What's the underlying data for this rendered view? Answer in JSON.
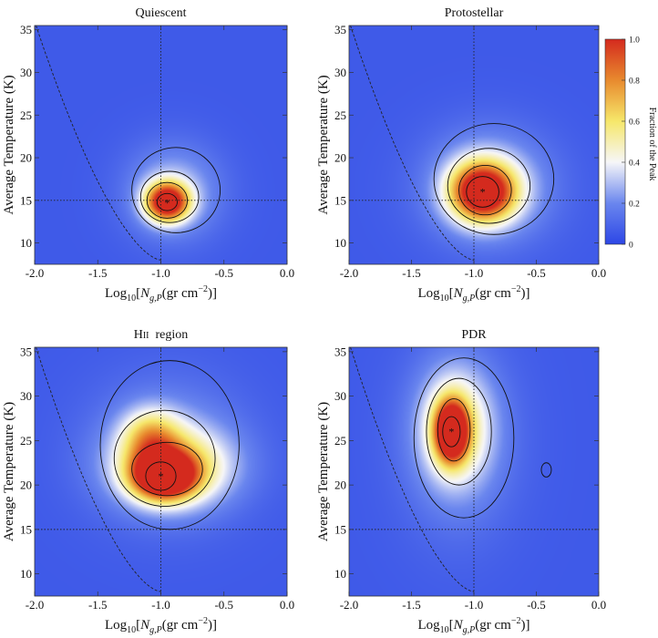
{
  "chart_data": [
    {
      "type": "heatmap",
      "title": "Quiescent",
      "xlabel_base": "Log",
      "xlabel_sub": "10",
      "xlabel_bracket_open": "[",
      "xlabel_N": "N",
      "xlabel_N_sub": "g,P",
      "xlabel_unit": "(gr cm",
      "xlabel_exp": "−2",
      "xlabel_close": ")]",
      "ylabel": "Average Temperature (K)",
      "xlim": [
        -2.0,
        0.0
      ],
      "ylim": [
        7.5,
        35.5
      ],
      "xticks": [
        "-2.0",
        "-1.5",
        "-1.0",
        "-0.5",
        "0.0"
      ],
      "xtick_values": [
        -2.0,
        -1.5,
        -1.0,
        -0.5,
        0.0
      ],
      "yticks": [
        "10",
        "15",
        "20",
        "25",
        "30",
        "35"
      ],
      "ytick_values": [
        10,
        15,
        20,
        25,
        30,
        35
      ],
      "ref_x": -1.0,
      "ref_y": 15,
      "peak": {
        "x": -0.95,
        "y": 14.7
      },
      "blobs": [
        {
          "x": -0.95,
          "y": 14.8,
          "sx": 0.12,
          "sy": 1.6,
          "w": 1.0
        },
        {
          "x": -0.9,
          "y": 16.0,
          "sx": 0.26,
          "sy": 3.8,
          "w": 0.25
        }
      ],
      "contours": [
        {
          "x": -0.95,
          "y": 14.8,
          "rx": 0.08,
          "ry": 1.0
        },
        {
          "x": -0.95,
          "y": 15.0,
          "rx": 0.16,
          "ry": 2.1
        },
        {
          "x": -0.93,
          "y": 15.4,
          "rx": 0.23,
          "ry": 3.0
        },
        {
          "x": -0.88,
          "y": 16.2,
          "rx": 0.35,
          "ry": 5.0
        }
      ]
    },
    {
      "type": "heatmap",
      "title": "Protostellar",
      "xlabel_base": "Log",
      "xlabel_sub": "10",
      "xlabel_bracket_open": "[",
      "xlabel_N": "N",
      "xlabel_N_sub": "g,P",
      "xlabel_unit": "(gr cm",
      "xlabel_exp": "−2",
      "xlabel_close": ")]",
      "ylabel": "Average Temperature (K)",
      "xlim": [
        -2.0,
        0.0
      ],
      "ylim": [
        7.5,
        35.5
      ],
      "xticks": [
        "-2.0",
        "-1.5",
        "-1.0",
        "-0.5",
        "0.0"
      ],
      "xtick_values": [
        -2.0,
        -1.5,
        -1.0,
        -0.5,
        0.0
      ],
      "yticks": [
        "10",
        "15",
        "20",
        "25",
        "30",
        "35"
      ],
      "ytick_values": [
        10,
        15,
        20,
        25,
        30,
        35
      ],
      "ref_x": -1.0,
      "ref_y": 15,
      "peak": {
        "x": -0.93,
        "y": 16.0
      },
      "blobs": [
        {
          "x": -0.93,
          "y": 16.0,
          "sx": 0.18,
          "sy": 2.4,
          "w": 1.0
        },
        {
          "x": -0.88,
          "y": 16.6,
          "sx": 0.34,
          "sy": 4.4,
          "w": 0.3
        }
      ],
      "contours": [
        {
          "x": -0.93,
          "y": 16.0,
          "rx": 0.13,
          "ry": 1.8
        },
        {
          "x": -0.91,
          "y": 16.2,
          "rx": 0.21,
          "ry": 2.9
        },
        {
          "x": -0.88,
          "y": 16.7,
          "rx": 0.33,
          "ry": 4.4
        },
        {
          "x": -0.84,
          "y": 17.5,
          "rx": 0.48,
          "ry": 6.5
        }
      ]
    },
    {
      "type": "heatmap",
      "title": "HII region",
      "title_main": "H",
      "title_roman": "II",
      "title_rest": "region",
      "xlabel_base": "Log",
      "xlabel_sub": "10",
      "xlabel_bracket_open": "[",
      "xlabel_N": "N",
      "xlabel_N_sub": "g,P",
      "xlabel_unit": "(gr cm",
      "xlabel_exp": "−2",
      "xlabel_close": ")]",
      "ylabel": "Average Temperature (K)",
      "xlim": [
        -2.0,
        0.0
      ],
      "ylim": [
        7.5,
        35.5
      ],
      "xticks": [
        "-2.0",
        "-1.5",
        "-1.0",
        "-0.5",
        "0.0"
      ],
      "xtick_values": [
        -2.0,
        -1.5,
        -1.0,
        -0.5,
        0.0
      ],
      "yticks": [
        "10",
        "15",
        "20",
        "25",
        "30",
        "35"
      ],
      "ytick_values": [
        10,
        15,
        20,
        25,
        30,
        35
      ],
      "ref_x": -1.0,
      "ref_y": 15,
      "peak": {
        "x": -1.0,
        "y": 21.0
      },
      "blobs": [
        {
          "x": -0.98,
          "y": 21.0,
          "sx": 0.17,
          "sy": 1.8,
          "w": 1.0
        },
        {
          "x": -0.9,
          "y": 22.0,
          "sx": 0.32,
          "sy": 3.0,
          "w": 0.5
        },
        {
          "x": -1.08,
          "y": 25.5,
          "sx": 0.16,
          "sy": 2.2,
          "w": 0.4
        },
        {
          "x": -0.95,
          "y": 24.0,
          "sx": 0.42,
          "sy": 5.5,
          "w": 0.18
        }
      ],
      "contours": [
        {
          "x": -1.0,
          "y": 21.0,
          "rx": 0.12,
          "ry": 1.6
        },
        {
          "x": -0.95,
          "y": 21.8,
          "rx": 0.28,
          "ry": 3.0
        },
        {
          "x": -0.97,
          "y": 23.0,
          "rx": 0.4,
          "ry": 5.4
        },
        {
          "x": -0.93,
          "y": 24.5,
          "rx": 0.55,
          "ry": 9.5
        }
      ]
    },
    {
      "type": "heatmap",
      "title": "PDR",
      "xlabel_base": "Log",
      "xlabel_sub": "10",
      "xlabel_bracket_open": "[",
      "xlabel_N": "N",
      "xlabel_N_sub": "g,P",
      "xlabel_unit": "(gr cm",
      "xlabel_exp": "−2",
      "xlabel_close": ")]",
      "ylabel": "Average Temperature (K)",
      "xlim": [
        -2.0,
        0.0
      ],
      "ylim": [
        7.5,
        35.5
      ],
      "xticks": [
        "-2.0",
        "-1.5",
        "-1.0",
        "-0.5",
        "0.0"
      ],
      "xtick_values": [
        -2.0,
        -1.5,
        -1.0,
        -0.5,
        0.0
      ],
      "yticks": [
        "10",
        "15",
        "20",
        "25",
        "30",
        "35"
      ],
      "ytick_values": [
        10,
        15,
        20,
        25,
        30,
        35
      ],
      "ref_x": -1.0,
      "ref_y": 15,
      "peak": {
        "x": -1.18,
        "y": 26.0
      },
      "blobs": [
        {
          "x": -1.18,
          "y": 26.0,
          "sx": 0.09,
          "sy": 2.3,
          "w": 1.0
        },
        {
          "x": -1.15,
          "y": 26.5,
          "sx": 0.2,
          "sy": 4.5,
          "w": 0.42
        },
        {
          "x": -1.12,
          "y": 25.0,
          "sx": 0.32,
          "sy": 7.5,
          "w": 0.15
        }
      ],
      "contours": [
        {
          "x": -1.18,
          "y": 26.0,
          "rx": 0.07,
          "ry": 1.7
        },
        {
          "x": -1.16,
          "y": 26.2,
          "rx": 0.13,
          "ry": 3.5
        },
        {
          "x": -1.12,
          "y": 26.0,
          "rx": 0.26,
          "ry": 6.0
        },
        {
          "x": -1.08,
          "y": 25.3,
          "rx": 0.4,
          "ry": 9.0
        },
        {
          "x": -0.42,
          "y": 21.7,
          "rx": 0.04,
          "ry": 0.8
        }
      ]
    }
  ],
  "colorbar": {
    "label": "Fraction of the Peak",
    "ticks": [
      "0",
      "0.2",
      "0.4",
      "0.6",
      "0.8",
      "1.0"
    ],
    "tick_values": [
      0,
      0.2,
      0.4,
      0.6,
      0.8,
      1.0
    ],
    "colors": [
      "#2d47e6",
      "#6a86ee",
      "#f6f6f8",
      "#f6e76a",
      "#e88a2e",
      "#d42a1e"
    ]
  },
  "colors": {
    "background_low": "#3a55e8",
    "contour": "#111111",
    "reference_line": "#222222",
    "peak_marker": "#111111"
  }
}
